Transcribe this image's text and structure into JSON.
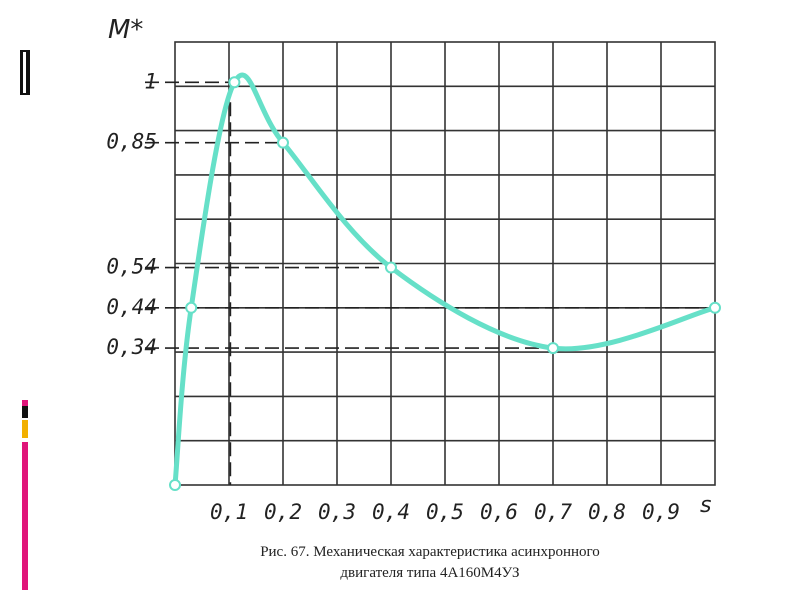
{
  "chart_data": {
    "type": "line",
    "y_label": "M*",
    "x_label": "s",
    "caption": [
      "Рис. 67. Механическая характеристика асинхронного",
      "двигателя типа 4А160М4УЗ"
    ],
    "series": [
      {
        "name": "M*(s)",
        "color": "#66e0c8",
        "x": [
          0,
          0.03,
          0.11,
          0.2,
          0.4,
          0.7,
          1.0
        ],
        "values": [
          0,
          0.44,
          1,
          0.85,
          0.54,
          0.34,
          0.44
        ]
      }
    ],
    "xlim": [
      0,
      1
    ],
    "ylim": [
      0,
      1.1
    ],
    "xticks": [
      {
        "value": 0.1,
        "label": "0,1"
      },
      {
        "value": 0.2,
        "label": "0,2"
      },
      {
        "value": 0.3,
        "label": "0,3"
      },
      {
        "value": 0.4,
        "label": "0,4"
      },
      {
        "value": 0.5,
        "label": "0,5"
      },
      {
        "value": 0.6,
        "label": "0,6"
      },
      {
        "value": 0.7,
        "label": "0,7"
      },
      {
        "value": 0.8,
        "label": "0,8"
      },
      {
        "value": 0.9,
        "label": "0,9"
      }
    ],
    "yticks": [
      {
        "value": 0.34,
        "label": "0,34"
      },
      {
        "value": 0.44,
        "label": "0,44"
      },
      {
        "value": 0.54,
        "label": "0,54"
      },
      {
        "value": 0.85,
        "label": "0,85"
      },
      1
    ],
    "grid": true
  }
}
